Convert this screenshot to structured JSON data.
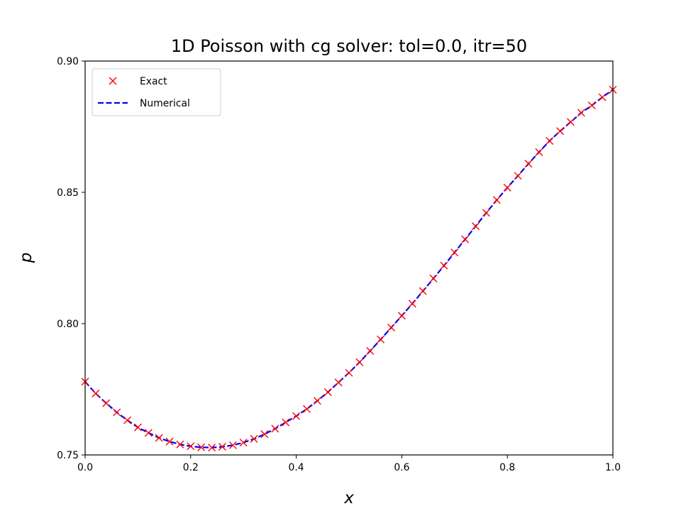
{
  "chart_data": {
    "type": "line",
    "title": "1D Poisson with cg solver: tol=0.0, itr=50",
    "xlabel": "x",
    "ylabel": "p",
    "xlim": [
      0.0,
      1.0
    ],
    "ylim": [
      0.75,
      0.9
    ],
    "xticks": [
      "0.0",
      "0.2",
      "0.4",
      "0.6",
      "0.8",
      "1.0"
    ],
    "yticks": [
      "0.75",
      "0.80",
      "0.85",
      "0.90"
    ],
    "grid": false,
    "legend": {
      "position": "upper-left"
    },
    "series": [
      {
        "name": "Exact",
        "style": "x-markers",
        "color": "#ff0000",
        "x": [
          0.0,
          0.02,
          0.04,
          0.06,
          0.08,
          0.1,
          0.12,
          0.14,
          0.16,
          0.18,
          0.2,
          0.22,
          0.24,
          0.26,
          0.28,
          0.3,
          0.32,
          0.34,
          0.36,
          0.38,
          0.4,
          0.42,
          0.44,
          0.46,
          0.48,
          0.5,
          0.52,
          0.54,
          0.56,
          0.58,
          0.6,
          0.62,
          0.64,
          0.66,
          0.68,
          0.7,
          0.72,
          0.74,
          0.76,
          0.78,
          0.8,
          0.82,
          0.84,
          0.86,
          0.88,
          0.9,
          0.92,
          0.94,
          0.96,
          0.98,
          1.0
        ],
        "y": [
          0.7779,
          0.7734,
          0.7697,
          0.7662,
          0.7632,
          0.7605,
          0.7584,
          0.7565,
          0.7551,
          0.754,
          0.7533,
          0.7529,
          0.7528,
          0.7531,
          0.7537,
          0.7547,
          0.7561,
          0.7579,
          0.76,
          0.7624,
          0.7648,
          0.7675,
          0.7706,
          0.7739,
          0.7776,
          0.7813,
          0.7853,
          0.7896,
          0.794,
          0.7985,
          0.803,
          0.8076,
          0.8124,
          0.8172,
          0.8221,
          0.8271,
          0.8321,
          0.8371,
          0.8422,
          0.8471,
          0.8518,
          0.8563,
          0.8609,
          0.8653,
          0.8696,
          0.8733,
          0.8768,
          0.8803,
          0.8831,
          0.8862,
          0.8891
        ]
      },
      {
        "name": "Numerical",
        "style": "dashed-line",
        "color": "#0000ff",
        "x": [
          0.0,
          0.02,
          0.04,
          0.06,
          0.08,
          0.1,
          0.12,
          0.14,
          0.16,
          0.18,
          0.2,
          0.22,
          0.24,
          0.26,
          0.28,
          0.3,
          0.32,
          0.34,
          0.36,
          0.38,
          0.4,
          0.42,
          0.44,
          0.46,
          0.48,
          0.5,
          0.52,
          0.54,
          0.56,
          0.58,
          0.6,
          0.62,
          0.64,
          0.66,
          0.68,
          0.7,
          0.72,
          0.74,
          0.76,
          0.78,
          0.8,
          0.82,
          0.84,
          0.86,
          0.88,
          0.9,
          0.92,
          0.94,
          0.96,
          0.98,
          1.0
        ],
        "y": [
          0.7779,
          0.7734,
          0.7697,
          0.7662,
          0.7632,
          0.7605,
          0.7584,
          0.7565,
          0.7551,
          0.754,
          0.7533,
          0.7529,
          0.7528,
          0.7531,
          0.7537,
          0.7547,
          0.7561,
          0.7579,
          0.76,
          0.7624,
          0.7648,
          0.7675,
          0.7706,
          0.7739,
          0.7776,
          0.7813,
          0.7853,
          0.7896,
          0.794,
          0.7985,
          0.803,
          0.8076,
          0.8124,
          0.8172,
          0.8221,
          0.8271,
          0.8321,
          0.8371,
          0.8422,
          0.8471,
          0.8518,
          0.8563,
          0.8609,
          0.8653,
          0.8696,
          0.8733,
          0.8768,
          0.8803,
          0.8831,
          0.8862,
          0.8891
        ]
      }
    ]
  }
}
